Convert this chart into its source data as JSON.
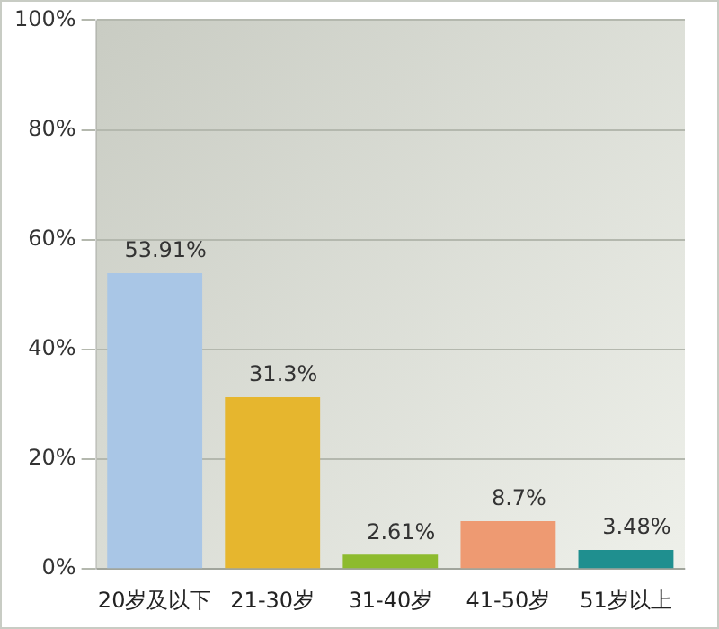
{
  "chart_data": {
    "type": "bar",
    "categories": [
      "20岁及以下",
      "21-30岁",
      "31-40岁",
      "41-50岁",
      "51岁以上"
    ],
    "values": [
      53.91,
      31.3,
      2.61,
      8.7,
      3.48
    ],
    "colors": [
      "#a9c6e6",
      "#e6b62e",
      "#8dbb2e",
      "#ee9a72",
      "#1f8f8f"
    ],
    "value_labels": [
      "53.91%",
      "31.3%",
      "2.61%",
      "8.7%",
      "3.48%"
    ],
    "ylim": [
      0,
      100
    ],
    "yticks": [
      {
        "value": 0,
        "label": "0%"
      },
      {
        "value": 20,
        "label": "20%"
      },
      {
        "value": 40,
        "label": "40%"
      },
      {
        "value": 60,
        "label": "60%"
      },
      {
        "value": 80,
        "label": "80%"
      },
      {
        "value": 100,
        "label": "100%"
      }
    ],
    "grid": "y",
    "legend": false
  }
}
